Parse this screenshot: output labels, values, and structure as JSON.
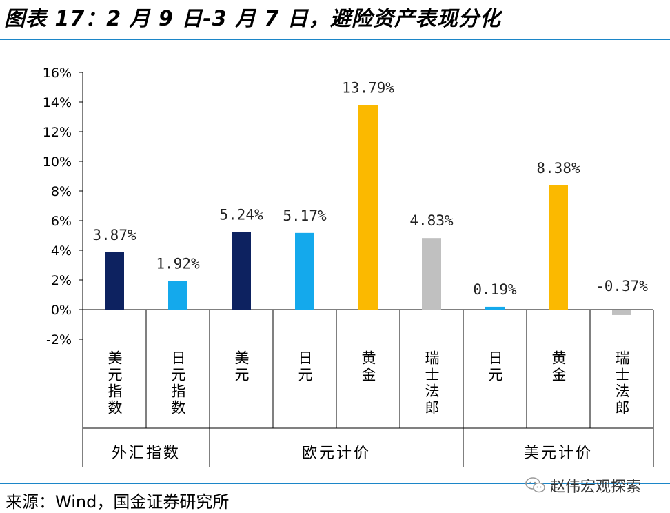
{
  "title": "图表 17：2 月 9 日-3 月 7 日，避险资产表现分化",
  "source": "来源：Wind，国金证券研究所",
  "watermark": "赵伟宏观探索",
  "chart_data": {
    "type": "bar",
    "title": "",
    "xlabel": "",
    "ylabel": "",
    "ylim": [
      -0.02,
      0.16
    ],
    "yticks": [
      "-2%",
      "0%",
      "2%",
      "4%",
      "6%",
      "8%",
      "10%",
      "12%",
      "14%",
      "16%"
    ],
    "grid": false,
    "legend": "none",
    "categories": [
      "美元指数",
      "日元指数",
      "美元",
      "日元",
      "黄金",
      "瑞士法郎",
      "日元",
      "黄金",
      "瑞士法郎"
    ],
    "values": [
      0.0387,
      0.0192,
      0.0524,
      0.0517,
      0.1379,
      0.0483,
      0.0019,
      0.0838,
      -0.0037
    ],
    "data_labels": [
      "3.87%",
      "1.92%",
      "5.24%",
      "5.17%",
      "13.79%",
      "4.83%",
      "0.19%",
      "8.38%",
      "-0.37%"
    ],
    "colors": [
      "#0d2260",
      "#14a9ec",
      "#0d2260",
      "#14a9ec",
      "#fbb900",
      "#c0c0c0",
      "#14a9ec",
      "#fbb900",
      "#c0c0c0"
    ],
    "groups": [
      {
        "label": "外汇指数",
        "count": 2
      },
      {
        "label": "欧元计价",
        "count": 4
      },
      {
        "label": "美元计价",
        "count": 3
      }
    ]
  }
}
